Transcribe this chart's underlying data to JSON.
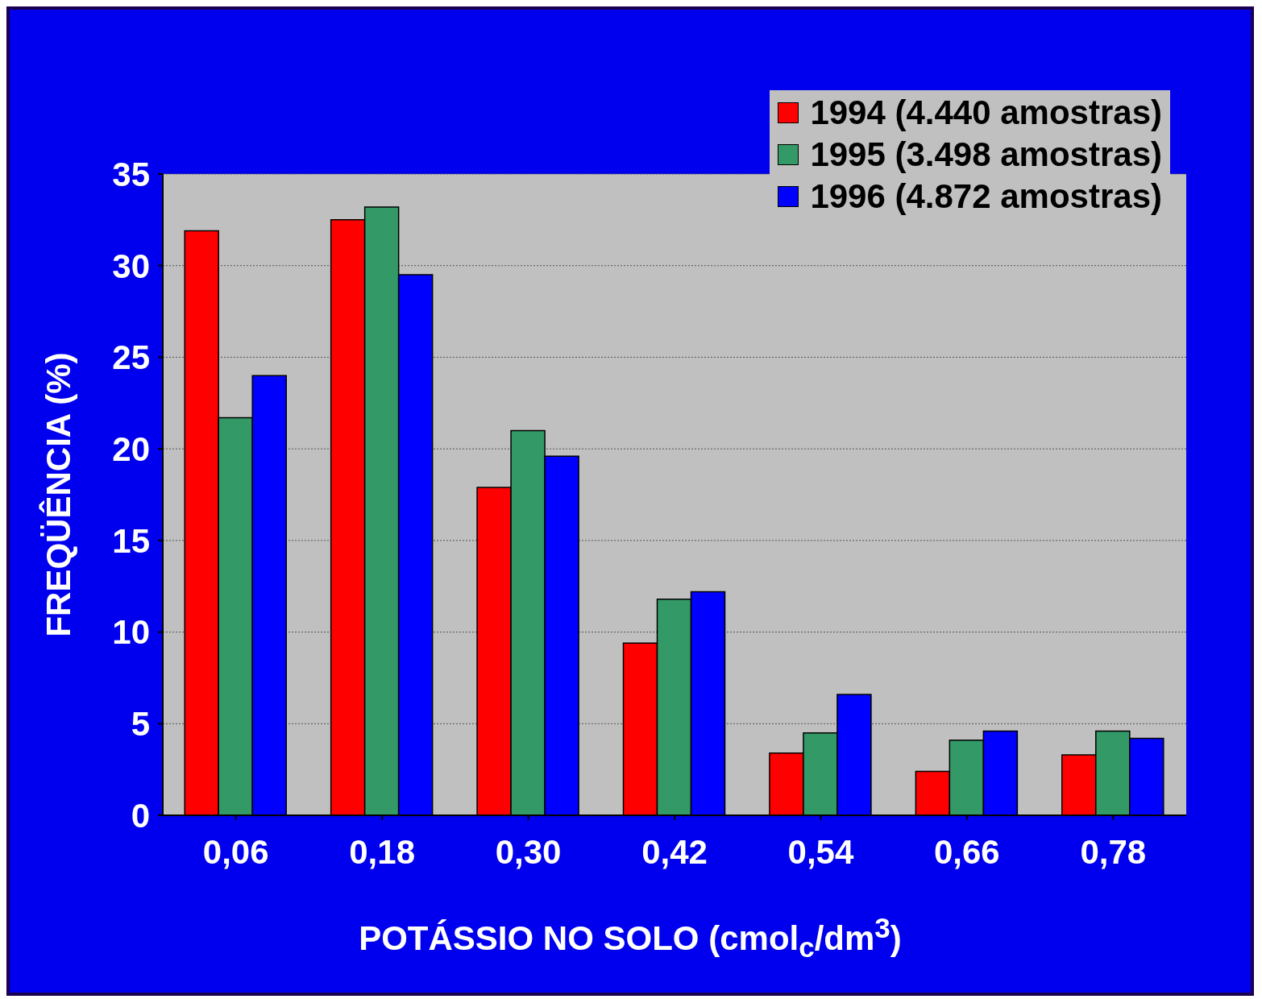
{
  "chart_data": {
    "type": "bar",
    "xlabel": "POTÁSSIO NO SOLO (cmol$_{c}$/dm$^{3}$)",
    "ylabel": "FREQÜÊNCIA (%)",
    "categories": [
      "0,06",
      "0,18",
      "0,30",
      "0,42",
      "0,54",
      "0,66",
      "0,78"
    ],
    "series": [
      {
        "name": "1994 (4.440 amostras)",
        "color": "#ff0000",
        "values": [
          31.9,
          32.5,
          17.9,
          9.4,
          3.4,
          2.4,
          3.3
        ]
      },
      {
        "name": "1995 (3.498 amostras)",
        "color": "#339966",
        "values": [
          21.7,
          33.2,
          21.0,
          11.8,
          4.5,
          4.1,
          4.6
        ]
      },
      {
        "name": "1996 (4.872 amostras)",
        "color": "#0000ff",
        "values": [
          24.0,
          29.5,
          19.6,
          12.2,
          6.6,
          4.6,
          4.2
        ]
      }
    ],
    "ylim": [
      0,
      35
    ],
    "yticks": [
      0,
      5,
      10,
      15,
      20,
      25,
      30,
      35
    ],
    "grid": "y",
    "legend": "top right"
  }
}
